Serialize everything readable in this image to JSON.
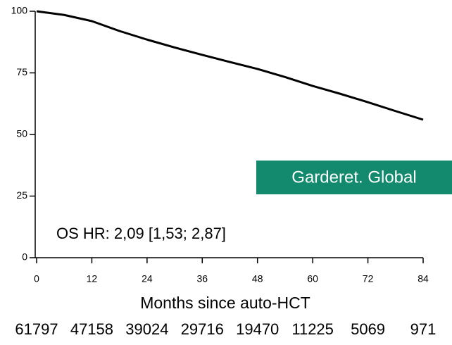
{
  "chart_data": {
    "type": "line",
    "x": [
      0,
      6,
      12,
      18,
      24,
      30,
      36,
      42,
      48,
      54,
      60,
      66,
      72,
      78,
      84
    ],
    "series": [
      {
        "color": "#000000",
        "values": [
          100,
          98.5,
          96,
          92,
          88.5,
          85.3,
          82.3,
          79.4,
          76.6,
          73.3,
          69.7,
          66.5,
          63.1,
          59.5,
          56
        ]
      }
    ],
    "xlim": [
      0,
      84
    ],
    "ylim": [
      0,
      100
    ],
    "xticks": [
      0,
      12,
      24,
      36,
      48,
      60,
      72,
      84
    ],
    "yticks": [
      0,
      25,
      50,
      75,
      100
    ],
    "xlabel": "Months since auto-HCT",
    "at_risk": [
      61797,
      47158,
      39024,
      29716,
      19470,
      11225,
      5069,
      971
    ],
    "annotation": "OS HR: 2,09 [1,53; 2,87]",
    "badge": {
      "text": "Garderet. Global",
      "color": "#138a6e"
    }
  }
}
